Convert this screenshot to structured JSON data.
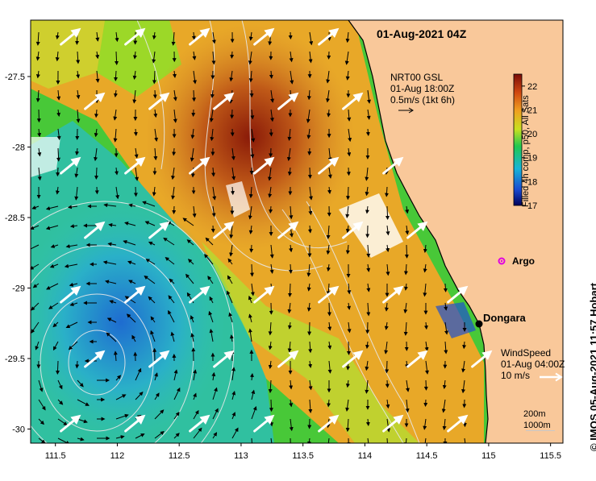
{
  "map": {
    "title": "01-Aug-2021 04Z",
    "extent": {
      "lon": [
        111.3,
        115.6
      ],
      "lat": [
        -30.1,
        -27.1
      ]
    },
    "colorbar": {
      "label": "Filled 4h comp, p50, All Sats",
      "min": 17,
      "max": 22.5,
      "ticks": [
        "17",
        "18",
        "19",
        "20",
        "21",
        "22"
      ],
      "colors": [
        "#00005a",
        "#1a4ad0",
        "#18b4d8",
        "#20c850",
        "#c8e020",
        "#f0a020",
        "#d04810",
        "#7a0c08"
      ]
    },
    "lon_ticks": [
      "111.5",
      "112",
      "112.5",
      "113",
      "113.5",
      "114",
      "114.5",
      "115",
      "115.5"
    ],
    "lat_ticks": [
      "-27.5",
      "-28",
      "-28.5",
      "-29",
      "-29.5",
      "-30"
    ],
    "current_legend": {
      "line1": "NRT00 GSL",
      "line2": "01-Aug 18:00Z",
      "line3": "0.5m/s (1kt 6h)"
    },
    "wind_legend": {
      "line1": "WindSpeed",
      "line2": "01-Aug 04:00Z",
      "line3": "10 m/s"
    },
    "depth_legend": {
      "line1": "200m",
      "line2": "1000m"
    },
    "places": {
      "dongara": "Dongara",
      "argo": "Argo"
    },
    "argo_color": "#e000e0",
    "land_color": "#f9c89a",
    "credit": "© IMOS 05-Aug-2021 11:57 Hobart"
  }
}
